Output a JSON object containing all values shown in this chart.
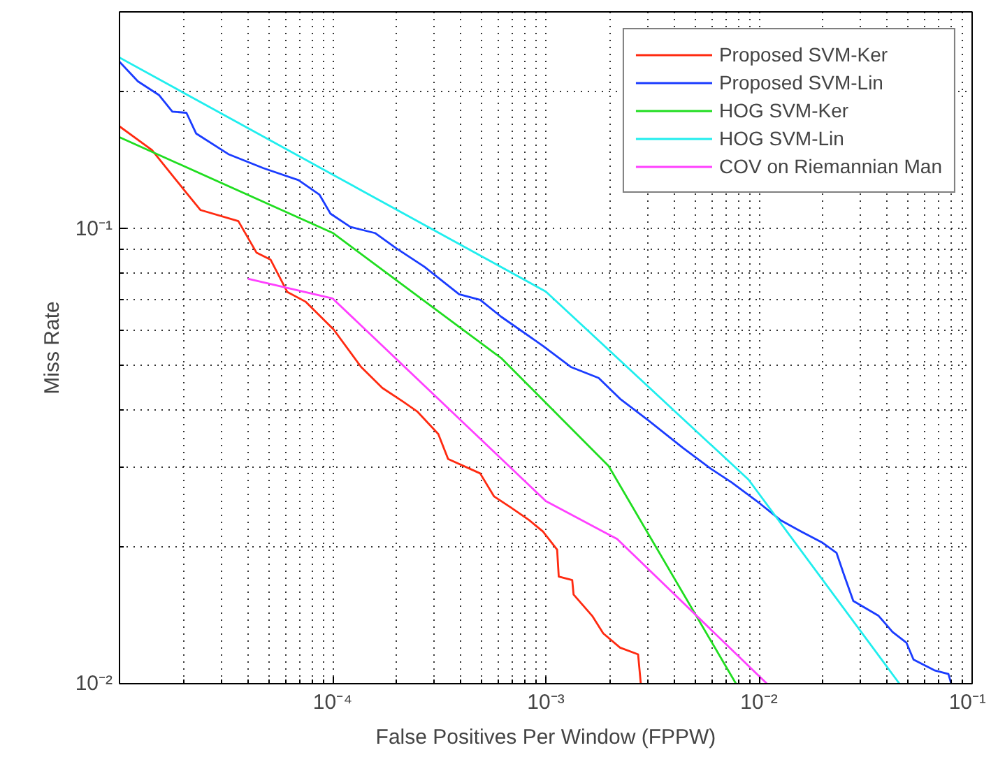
{
  "chart_data": {
    "type": "line",
    "xlabel": "False Positives Per Window (FPPW)",
    "ylabel": "Miss Rate",
    "log": "xy",
    "grid": true,
    "legend": "top right",
    "line_style": "solid",
    "marker": "none",
    "xlim": [
      1e-05,
      0.1
    ],
    "ylim": [
      0.01,
      0.3
    ],
    "xticks": [
      {
        "value": 0.0001,
        "label": "10⁻⁴"
      },
      {
        "value": 0.001,
        "label": "10⁻³"
      },
      {
        "value": 0.01,
        "label": "10⁻²"
      },
      {
        "value": 0.1,
        "label": "10⁻¹"
      }
    ],
    "yticks": [
      {
        "value": 0.01,
        "label": "10⁻²"
      },
      {
        "value": 0.1,
        "label": "10⁻¹"
      }
    ],
    "series": [
      {
        "name": "Proposed SVM-Ker",
        "color": "#ff2a10",
        "x": [
          1e-05,
          1.42e-05,
          2.06e-05,
          2.4e-05,
          3.61e-05,
          4.39e-05,
          5.11e-05,
          6.12e-05,
          7.45e-05,
          0.000101,
          0.000136,
          0.000171,
          0.000214,
          0.000249,
          0.000313,
          0.000348,
          0.000492,
          0.000572,
          0.000685,
          0.000834,
          0.00097,
          0.00113,
          0.00115,
          0.00133,
          0.00135,
          0.00165,
          0.00186,
          0.00223,
          0.00271,
          0.00279
        ],
        "values": [
          0.168,
          0.149,
          0.12,
          0.11,
          0.104,
          0.0887,
          0.0856,
          0.0727,
          0.0692,
          0.0601,
          0.0497,
          0.0447,
          0.0417,
          0.0397,
          0.0354,
          0.0312,
          0.029,
          0.0258,
          0.0244,
          0.0229,
          0.0216,
          0.0197,
          0.0172,
          0.0169,
          0.0157,
          0.0141,
          0.0129,
          0.012,
          0.0116,
          0.01
        ]
      },
      {
        "name": "Proposed SVM-Lin",
        "color": "#1a3cff",
        "x": [
          1e-05,
          1.22e-05,
          1.53e-05,
          1.77e-05,
          2.06e-05,
          2.29e-05,
          3.24e-05,
          4.73e-05,
          6.91e-05,
          8.66e-05,
          9.77e-05,
          0.000121,
          0.000158,
          0.000199,
          0.000269,
          0.000392,
          0.000492,
          0.000617,
          0.00097,
          0.00131,
          0.00177,
          0.00223,
          0.00301,
          0.0044,
          0.00594,
          0.00745,
          0.0101,
          0.0126,
          0.0158,
          0.0199,
          0.0231,
          0.0249,
          0.0277,
          0.0364,
          0.0423,
          0.0492,
          0.0531,
          0.0665,
          0.0774,
          0.0798
        ],
        "values": [
          0.233,
          0.211,
          0.197,
          0.181,
          0.18,
          0.162,
          0.146,
          0.136,
          0.128,
          0.119,
          0.108,
          0.101,
          0.0979,
          0.0906,
          0.0826,
          0.0718,
          0.0698,
          0.0641,
          0.0553,
          0.0497,
          0.047,
          0.0423,
          0.038,
          0.033,
          0.0297,
          0.0277,
          0.0249,
          0.0229,
          0.0216,
          0.0204,
          0.0194,
          0.0175,
          0.0152,
          0.0141,
          0.013,
          0.0123,
          0.0113,
          0.0107,
          0.0105,
          0.01
        ]
      },
      {
        "name": "HOG SVM-Ker",
        "color": "#20dd20",
        "x": [
          1e-05,
          0.0001,
          0.00062,
          0.00197,
          0.0078
        ],
        "values": [
          0.159,
          0.098,
          0.0519,
          0.0301,
          0.01
        ]
      },
      {
        "name": "HOG SVM-Lin",
        "color": "#20eeee",
        "x": [
          1e-05,
          0.001,
          0.00893,
          0.0456
        ],
        "values": [
          0.238,
          0.0728,
          0.0281,
          0.01
        ]
      },
      {
        "name": "COV on Riemannian Man",
        "color": "#ff40ff",
        "x": [
          4e-05,
          0.0001,
          0.001,
          0.00216,
          0.0109
        ],
        "values": [
          0.0777,
          0.0703,
          0.0252,
          0.0208,
          0.01
        ]
      }
    ]
  }
}
